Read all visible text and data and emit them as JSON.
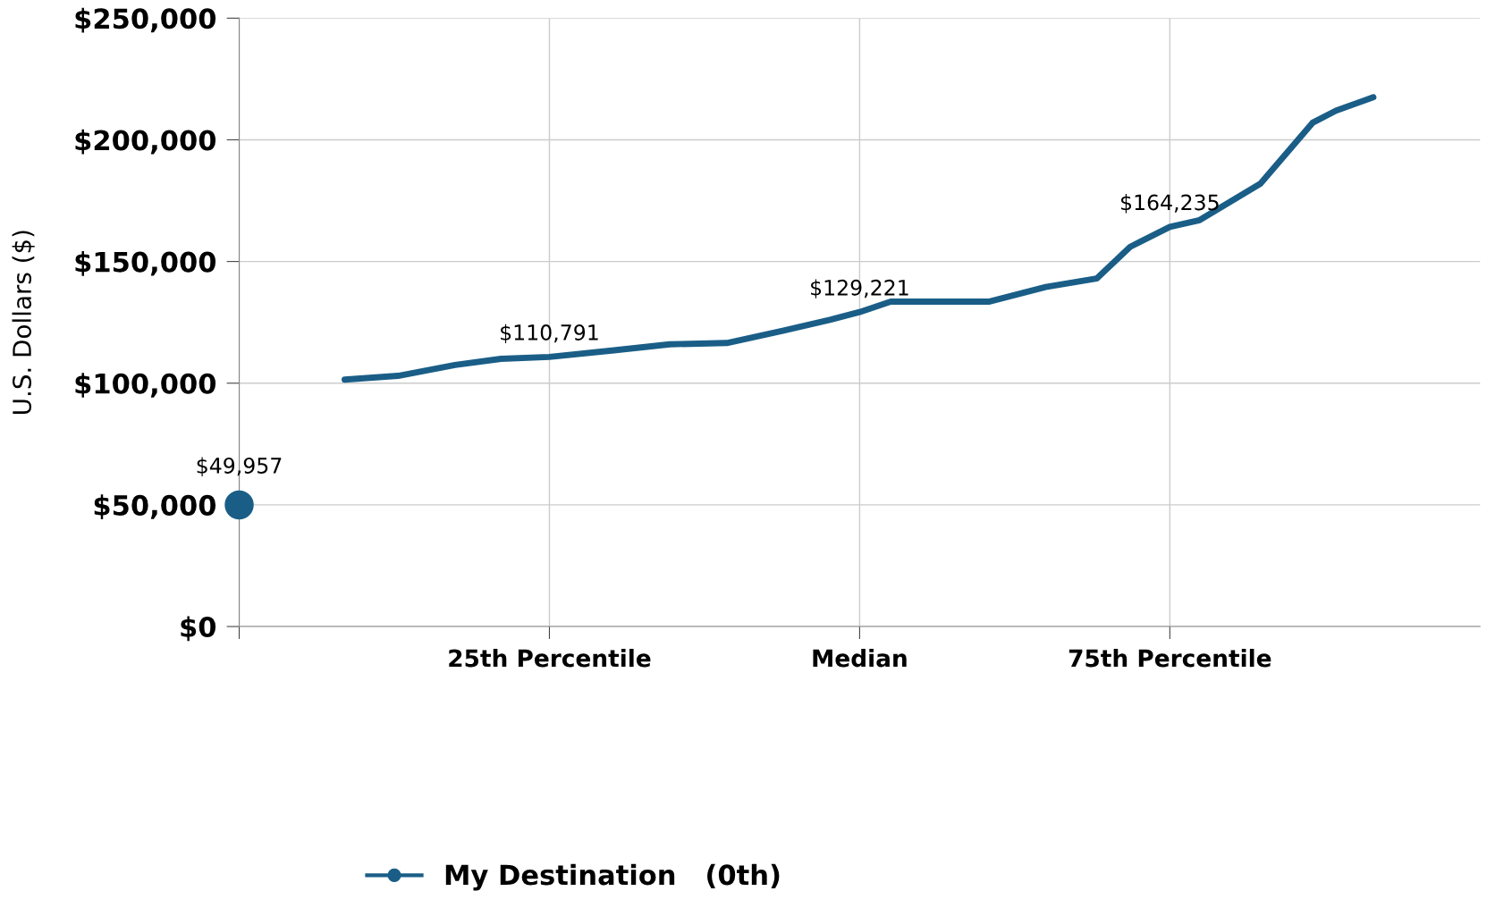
{
  "chart_data": {
    "type": "line",
    "ylabel": "U.S. Dollars ($)",
    "xlim": [
      0,
      100
    ],
    "xticks": [
      {
        "value": 0,
        "label": null
      },
      {
        "value": 25,
        "label": "25th Percentile"
      },
      {
        "value": 50,
        "label": "Median"
      },
      {
        "value": 75,
        "label": "75th Percentile"
      }
    ],
    "ylim": [
      0,
      250000
    ],
    "yticks": [
      {
        "value": 0,
        "label": "$0"
      },
      {
        "value": 50000,
        "label": "$50,000"
      },
      {
        "value": 100000,
        "label": "$100,000"
      },
      {
        "value": 150000,
        "label": "$150,000"
      },
      {
        "value": 200000,
        "label": "$200,000"
      },
      {
        "value": 250000,
        "label": "$250,000"
      }
    ],
    "grid": true,
    "legend": "bottom",
    "series": [
      {
        "color": "#1a5e87",
        "marker": "none",
        "line_style": "solid",
        "x": [
          8.5,
          12.8,
          17.4,
          21.1,
          25,
          30.2,
          34.7,
          39.3,
          43.8,
          47.6,
          50,
          52.5,
          56.6,
          60.4,
          65,
          69.1,
          71.8,
          75,
          77.4,
          82.3,
          86.5,
          88.4,
          91.4
        ],
        "values": [
          101500,
          103000,
          107500,
          110000,
          110791,
          113500,
          116000,
          116500,
          121500,
          126000,
          129221,
          133500,
          133500,
          133500,
          139500,
          143000,
          156000,
          164235,
          167000,
          182000,
          207000,
          212000,
          217500
        ]
      },
      {
        "type": "scatter",
        "name": "My Destination   (0th)",
        "color": "#1a5e87",
        "marker": "circle",
        "x": [
          0
        ],
        "values": [
          49957
        ],
        "value_labels": [
          "$49,957"
        ]
      }
    ],
    "annotations": [
      {
        "text": "$110,791",
        "x": 25,
        "y": 110791
      },
      {
        "text": "$129,221",
        "x": 50,
        "y": 129221
      },
      {
        "text": "$164,235",
        "x": 75,
        "y": 164235
      }
    ]
  }
}
